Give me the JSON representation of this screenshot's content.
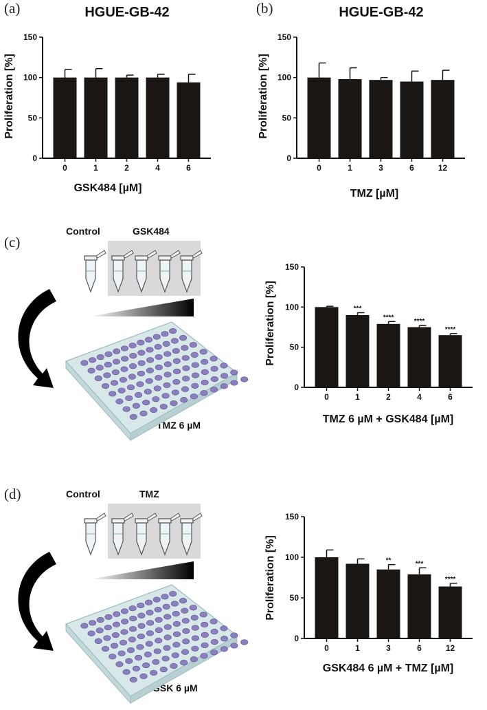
{
  "panels": {
    "a": {
      "label": "(a)"
    },
    "b": {
      "label": "(b)"
    },
    "c": {
      "label": "(c)",
      "scheme": {
        "control": "Control",
        "treatment": "GSK484",
        "plate": "TMZ 6 µM"
      }
    },
    "d": {
      "label": "(d)",
      "scheme": {
        "control": "Control",
        "treatment": "TMZ",
        "plate": "GSK 6 µM"
      }
    }
  },
  "colors": {
    "bar": "#1a1614",
    "axis": "#111111",
    "well": "#8b7fbf",
    "plate": "#d8e7e8",
    "box": "#d9d9d9"
  },
  "icons": [
    "tube-icon",
    "curved-arrow-icon",
    "gradient-wedge-icon",
    "well-plate-icon"
  ],
  "chart_data": [
    {
      "type": "bar",
      "title": "HGUE-GB-42",
      "xlabel": "GSK484 [µM]",
      "ylabel": "Proliferation [%]",
      "categories": [
        "0",
        "1",
        "2",
        "4",
        "6"
      ],
      "values": [
        100,
        100,
        100,
        100,
        94
      ],
      "errors": [
        10,
        11,
        3,
        4,
        10
      ],
      "significance": [
        "",
        "",
        "",
        "",
        ""
      ],
      "ylim": [
        0,
        150
      ],
      "yticks": [
        0,
        50,
        100,
        150
      ]
    },
    {
      "type": "bar",
      "title": "HGUE-GB-42",
      "xlabel": "TMZ [µM]",
      "ylabel": "Proliferation [%]",
      "categories": [
        "0",
        "1",
        "3",
        "6",
        "12"
      ],
      "values": [
        100,
        98,
        97,
        95,
        97
      ],
      "errors": [
        18,
        14,
        3,
        13,
        12
      ],
      "significance": [
        "",
        "",
        "",
        "",
        ""
      ],
      "ylim": [
        0,
        150
      ],
      "yticks": [
        0,
        50,
        100,
        150
      ]
    },
    {
      "type": "bar",
      "title": "",
      "xlabel": "TMZ 6 µM  + GSK484 [µM]",
      "ylabel": "Proliferation [%]",
      "categories": [
        "0",
        "1",
        "2",
        "4",
        "6"
      ],
      "values": [
        100,
        90,
        79,
        75,
        65
      ],
      "errors": [
        1,
        3,
        3,
        2,
        2
      ],
      "significance": [
        "",
        "***",
        "****",
        "****",
        "****"
      ],
      "ylim": [
        0,
        150
      ],
      "yticks": [
        0,
        50,
        100,
        150
      ]
    },
    {
      "type": "bar",
      "title": "",
      "xlabel": "GSK484 6 µM  + TMZ [µM]",
      "ylabel": "Proliferation [%]",
      "categories": [
        "0",
        "1",
        "3",
        "6",
        "12"
      ],
      "values": [
        100,
        92,
        85,
        79,
        64
      ],
      "errors": [
        9,
        6,
        6,
        8,
        4
      ],
      "significance": [
        "",
        "",
        "**",
        "***",
        "****"
      ],
      "ylim": [
        0,
        150
      ],
      "yticks": [
        0,
        50,
        100,
        150
      ]
    }
  ]
}
